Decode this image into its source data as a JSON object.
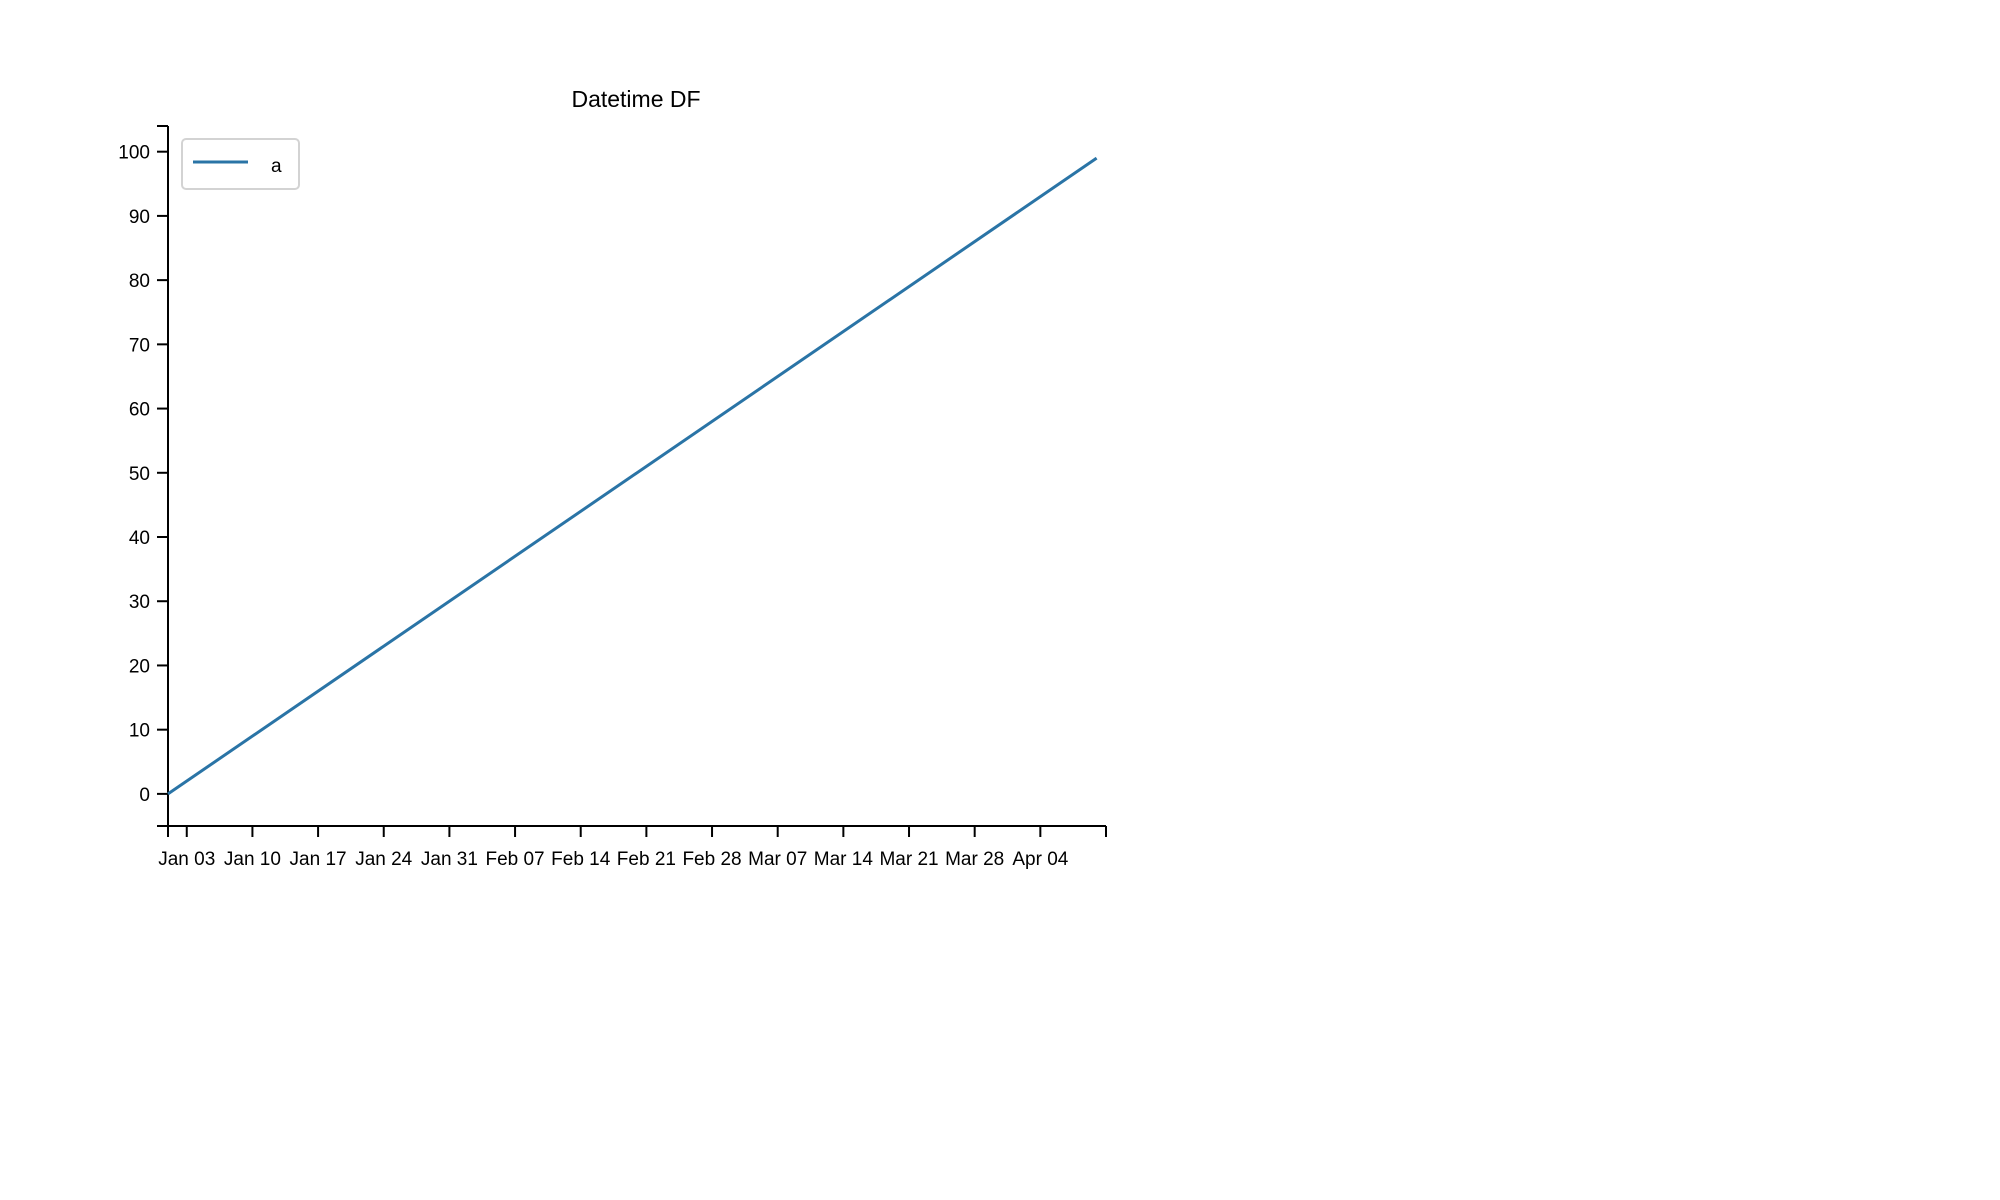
{
  "chart_data": {
    "type": "line",
    "title": "Datetime DF",
    "xlabel": "",
    "ylabel": "",
    "x_scale": "date",
    "xlim": [
      "2021-01-01",
      "2021-04-11"
    ],
    "ylim": [
      -5,
      104
    ],
    "x_ticks": [
      {
        "date": "2021-01-01",
        "label": ""
      },
      {
        "date": "2021-01-03",
        "label": "Jan 03"
      },
      {
        "date": "2021-01-10",
        "label": "Jan 10"
      },
      {
        "date": "2021-01-17",
        "label": "Jan 17"
      },
      {
        "date": "2021-01-24",
        "label": "Jan 24"
      },
      {
        "date": "2021-01-31",
        "label": "Jan 31"
      },
      {
        "date": "2021-02-07",
        "label": "Feb 07"
      },
      {
        "date": "2021-02-14",
        "label": "Feb 14"
      },
      {
        "date": "2021-02-21",
        "label": "Feb 21"
      },
      {
        "date": "2021-02-28",
        "label": "Feb 28"
      },
      {
        "date": "2021-03-07",
        "label": "Mar 07"
      },
      {
        "date": "2021-03-14",
        "label": "Mar 14"
      },
      {
        "date": "2021-03-21",
        "label": "Mar 21"
      },
      {
        "date": "2021-03-28",
        "label": "Mar 28"
      },
      {
        "date": "2021-04-04",
        "label": "Apr 04"
      },
      {
        "date": "2021-04-11",
        "label": ""
      }
    ],
    "y_ticks": [
      0,
      10,
      20,
      30,
      40,
      50,
      60,
      70,
      80,
      90,
      100
    ],
    "grid": false,
    "legend": {
      "placement": "top-left",
      "entries": [
        "a"
      ]
    },
    "series": [
      {
        "name": "a",
        "color": "#2a74a6",
        "points": [
          {
            "date": "2021-01-01",
            "value": 0
          },
          {
            "date": "2021-04-10",
            "value": 99
          }
        ]
      }
    ]
  }
}
